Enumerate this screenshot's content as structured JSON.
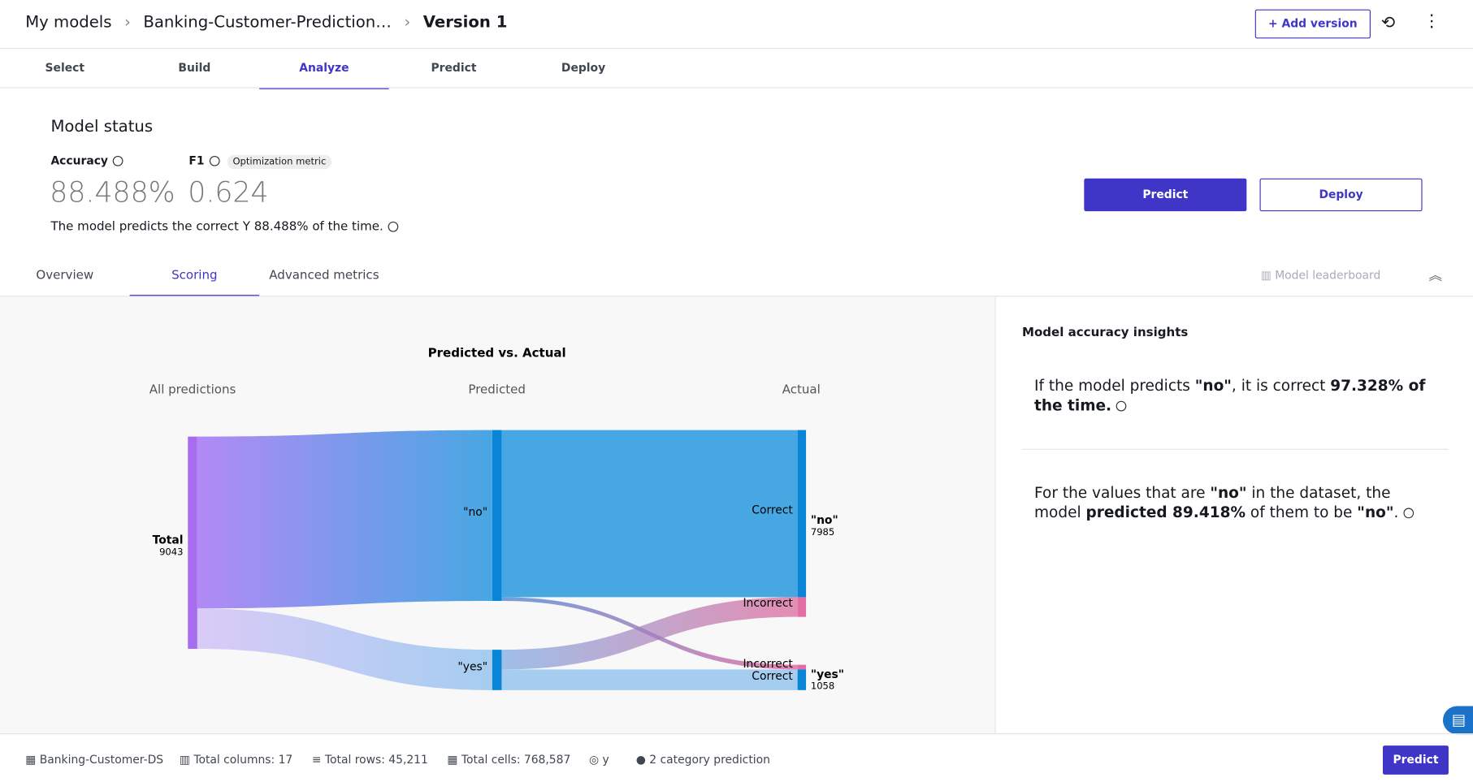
{
  "breadcrumb": [
    "My models",
    "Banking-Customer-Prediction…",
    "Version 1"
  ],
  "header_actions": {
    "add_version": "Add version"
  },
  "tabs": [
    "Select",
    "Build",
    "Analyze",
    "Predict",
    "Deploy"
  ],
  "model_status": {
    "title": "Model status",
    "metrics": [
      {
        "label": "Accuracy",
        "value": "88.488%"
      },
      {
        "label": "F1",
        "badge": "Optimization metric",
        "value": "0.624"
      }
    ],
    "description": "The model predicts the correct Y 88.488% of the time."
  },
  "buttons": {
    "predict": "Predict",
    "deploy": "Deploy"
  },
  "subtabs": [
    "Overview",
    "Scoring",
    "Advanced metrics"
  ],
  "leaderboard": "Model leaderboard",
  "sankey": {
    "title": "Predicted vs. Actual",
    "columns": [
      "All predictions",
      "Predicted",
      "Actual"
    ],
    "total": {
      "label": "Total",
      "count": 9043
    },
    "predicted": [
      "\"no\"",
      "\"yes\""
    ],
    "actual": [
      {
        "label": "\"no\"",
        "count": 7985
      },
      {
        "label": "\"yes\"",
        "count": 1058
      }
    ],
    "flow_labels": [
      "Correct",
      "Incorrect",
      "Incorrect",
      "Correct"
    ]
  },
  "insights": {
    "title": "Model accuracy insights",
    "items": [
      [
        {
          "text": "If the model predicts ",
          "bold": false
        },
        {
          "text": "\"no\"",
          "bold": true
        },
        {
          "text": ", it is correct ",
          "bold": false
        },
        {
          "text": "97.328% of the time.",
          "bold": true
        }
      ],
      [
        {
          "text": "For the values that are ",
          "bold": false
        },
        {
          "text": "\"no\"",
          "bold": true
        },
        {
          "text": " in the dataset, the model ",
          "bold": false
        },
        {
          "text": "predicted 89.418%",
          "bold": true
        },
        {
          "text": " of them to be ",
          "bold": false
        },
        {
          "text": "\"no\"",
          "bold": true
        },
        {
          "text": ".",
          "bold": false
        }
      ]
    ]
  },
  "footer": {
    "items": [
      "Banking-Customer-DS",
      "Total columns: 17",
      "Total rows: 45,211",
      "Total cells: 768,587",
      "y",
      "2 category prediction"
    ],
    "predict": "Predict"
  }
}
